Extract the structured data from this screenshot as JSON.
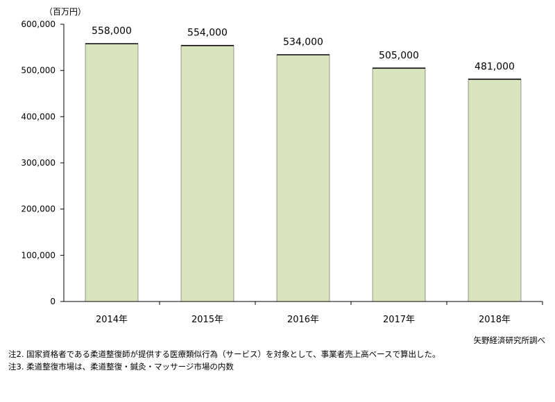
{
  "chart_data": {
    "type": "bar",
    "unit_label": "（百万円）",
    "categories": [
      "2014年",
      "2015年",
      "2016年",
      "2017年",
      "2018年"
    ],
    "values": [
      558000,
      554000,
      534000,
      505000,
      481000
    ],
    "data_labels": [
      "558,000",
      "554,000",
      "534,000",
      "505,000",
      "481,000"
    ],
    "ylim": [
      0,
      600000
    ],
    "y_ticks": [
      0,
      100000,
      200000,
      300000,
      400000,
      500000,
      600000
    ],
    "y_tick_labels": [
      "0",
      "100,000",
      "200,000",
      "300,000",
      "400,000",
      "500,000",
      "600,000"
    ],
    "grid": false,
    "bar_color": "#d7e4bd",
    "bar_top_color": "#000000",
    "bar_edge_color": "#7f7f7f"
  },
  "source": "矢野経済研究所調べ",
  "notes": [
    "注2.  国家資格者である柔道整復師が提供する医療類似行為（サービス）を対象として、事業者売上高ベースで算出した。",
    "注3.  柔道整復市場は、柔道整復・鍼灸・マッサージ市場の内数"
  ]
}
